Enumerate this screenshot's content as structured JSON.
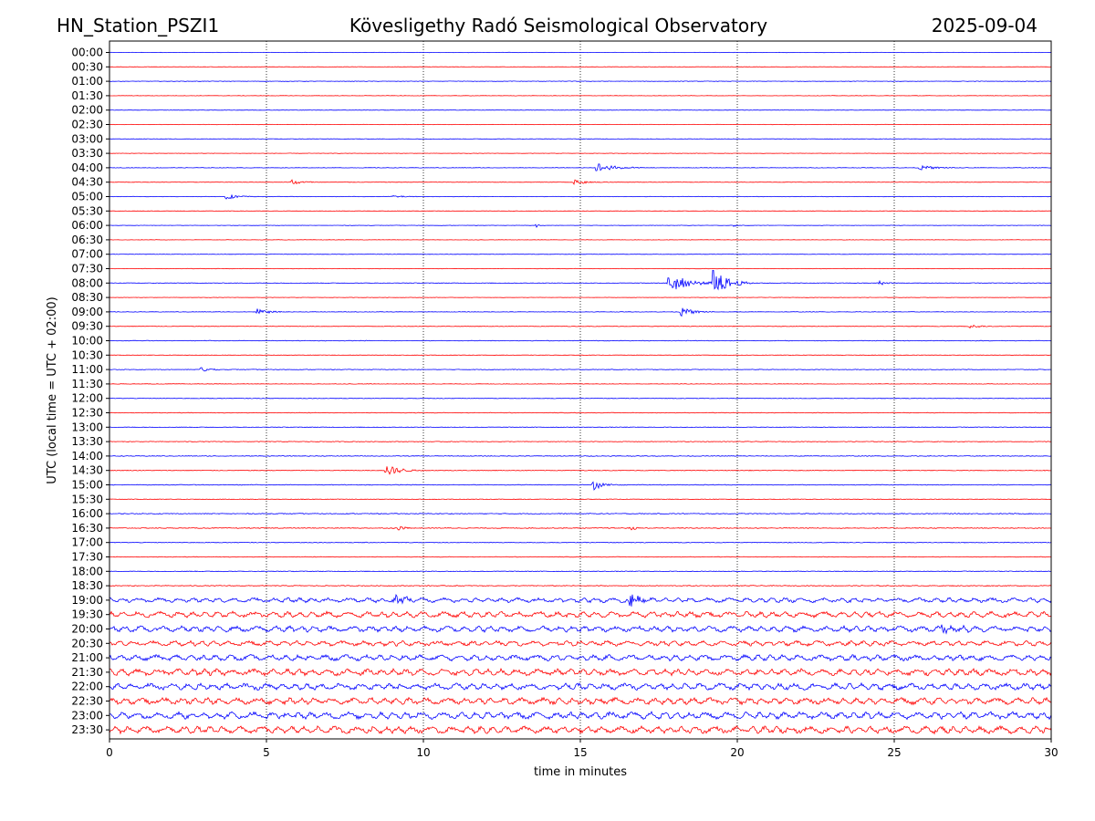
{
  "header": {
    "station": "HN_Station_PSZI1",
    "observatory": "Kövesligethy Radó Seismological Observatory",
    "date": "2025-09-04"
  },
  "chart_data": {
    "type": "line",
    "title": "Kövesligethy Radó Seismological Observatory",
    "xlabel": "time in minutes",
    "ylabel": "UTC (local time = UTC + 02:00)",
    "xlim": [
      0,
      30
    ],
    "x_ticks": [
      "0",
      "5",
      "10",
      "15",
      "20",
      "25",
      "30"
    ],
    "x_tick_values": [
      0,
      5,
      10,
      15,
      20,
      25,
      30
    ],
    "grid": "vertical dotted at 5-minute ticks",
    "row_labels": [
      "00:00",
      "00:30",
      "01:00",
      "01:30",
      "02:00",
      "02:30",
      "03:00",
      "03:30",
      "04:00",
      "04:30",
      "05:00",
      "05:30",
      "06:00",
      "06:30",
      "07:00",
      "07:30",
      "08:00",
      "08:30",
      "09:00",
      "09:30",
      "10:00",
      "10:30",
      "11:00",
      "11:30",
      "12:00",
      "12:30",
      "13:00",
      "13:30",
      "14:00",
      "14:30",
      "15:00",
      "15:30",
      "16:00",
      "16:30",
      "17:00",
      "17:30",
      "18:00",
      "18:30",
      "19:00",
      "19:30",
      "20:00",
      "20:30",
      "21:00",
      "21:30",
      "22:00",
      "22:30",
      "23:00",
      "23:30"
    ],
    "colors": {
      "even_rows": "#0000ff",
      "odd_rows": "#ff0000"
    },
    "noise_level": [
      0.3,
      0.3,
      0.4,
      0.3,
      0.4,
      0.3,
      0.4,
      0.3,
      0.4,
      0.4,
      0.4,
      0.3,
      0.3,
      0.3,
      0.4,
      0.4,
      0.5,
      0.3,
      0.4,
      0.5,
      0.5,
      0.4,
      0.5,
      0.4,
      0.5,
      0.5,
      0.5,
      0.5,
      0.6,
      0.6,
      0.6,
      0.5,
      0.7,
      0.7,
      0.6,
      0.5,
      0.6,
      0.7,
      2.0,
      2.5,
      2.5,
      2.2,
      2.5,
      2.8,
      2.8,
      2.8,
      3.0,
      3.0
    ],
    "events": [
      {
        "row": 8,
        "t": 15.5,
        "amp": 6,
        "dur": 0.5
      },
      {
        "row": 8,
        "t": 25.8,
        "amp": 2.5,
        "dur": 0.6
      },
      {
        "row": 9,
        "t": 5.8,
        "amp": 4,
        "dur": 0.3
      },
      {
        "row": 9,
        "t": 14.8,
        "amp": 3,
        "dur": 0.4
      },
      {
        "row": 10,
        "t": 3.7,
        "amp": 3.5,
        "dur": 0.4
      },
      {
        "row": 10,
        "t": 9.0,
        "amp": 2,
        "dur": 0.3
      },
      {
        "row": 12,
        "t": 13.6,
        "amp": 4,
        "dur": 0.05
      },
      {
        "row": 12,
        "t": 19.9,
        "amp": 3,
        "dur": 0.05
      },
      {
        "row": 16,
        "t": 17.8,
        "amp": 12,
        "dur": 0.55
      },
      {
        "row": 16,
        "t": 19.2,
        "amp": 16,
        "dur": 0.45
      },
      {
        "row": 16,
        "t": 24.5,
        "amp": 3,
        "dur": 0.2
      },
      {
        "row": 18,
        "t": 4.7,
        "amp": 4,
        "dur": 0.3
      },
      {
        "row": 18,
        "t": 18.2,
        "amp": 5,
        "dur": 0.4
      },
      {
        "row": 19,
        "t": 27.4,
        "amp": 3,
        "dur": 0.3
      },
      {
        "row": 22,
        "t": 2.9,
        "amp": 4,
        "dur": 0.3
      },
      {
        "row": 29,
        "t": 8.8,
        "amp": 7,
        "dur": 0.4
      },
      {
        "row": 30,
        "t": 15.4,
        "amp": 6,
        "dur": 0.3
      },
      {
        "row": 33,
        "t": 9.2,
        "amp": 3,
        "dur": 0.2
      },
      {
        "row": 33,
        "t": 16.6,
        "amp": 3,
        "dur": 0.2
      },
      {
        "row": 38,
        "t": 16.5,
        "amp": 14,
        "dur": 0.25
      },
      {
        "row": 38,
        "t": 9.0,
        "amp": 5,
        "dur": 0.6
      },
      {
        "row": 40,
        "t": 26.5,
        "amp": 5,
        "dur": 0.4
      }
    ]
  }
}
